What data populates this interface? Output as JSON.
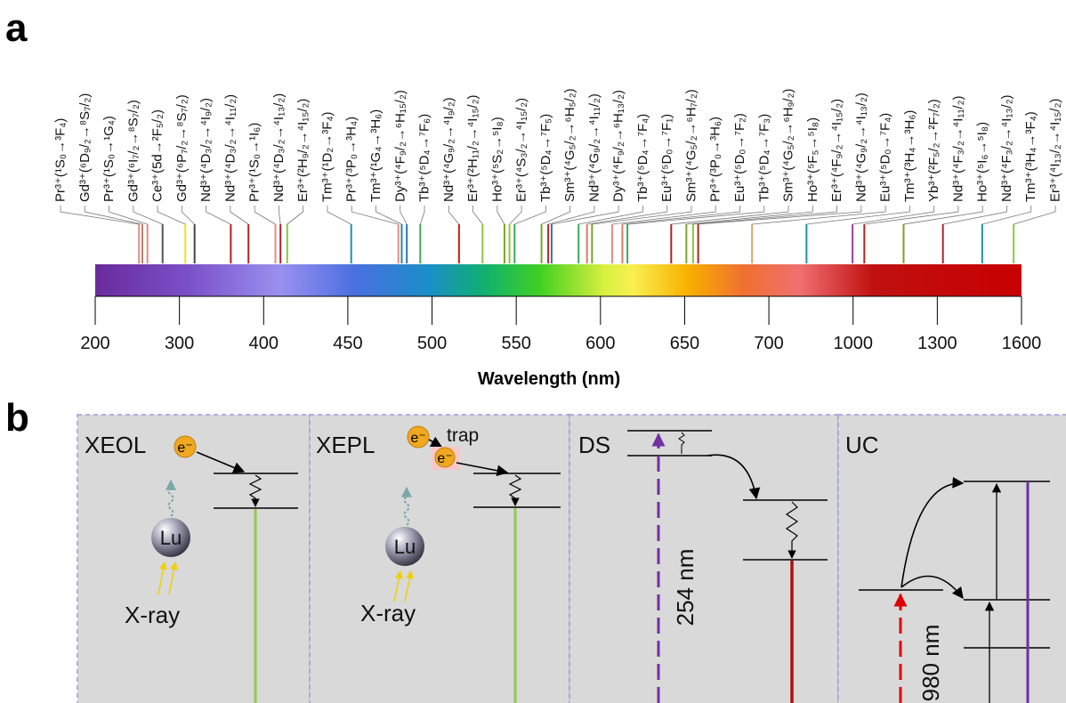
{
  "panel_a": {
    "letter": "a",
    "axis_title": "Wavelength (nm)",
    "ticks": [
      200,
      300,
      400,
      450,
      500,
      550,
      600,
      650,
      700,
      1000,
      1300,
      1600
    ],
    "transitions": [
      {
        "label": "Pr³⁺(¹S₀→³F₄)",
        "wavelength": 252,
        "color": "#e48a8a"
      },
      {
        "label": "Gd³⁺(⁶D₉/₂→⁸S₇/₂)",
        "wavelength": 256,
        "color": "#c08060"
      },
      {
        "label": "Pr³⁺(¹S₀→¹G₄)",
        "wavelength": 262,
        "color": "#e48a8a"
      },
      {
        "label": "Gd³⁺(⁶I₇/₂→⁸S₇/₂)",
        "wavelength": 280,
        "color": "#555555"
      },
      {
        "label": "Ce³⁺(5d→²F₅/₂)",
        "wavelength": 307,
        "color": "#f0e020"
      },
      {
        "label": "Gd³⁺(⁶P₇/₂→⁸S₇/₂)",
        "wavelength": 318,
        "color": "#444444"
      },
      {
        "label": "Nd³⁺(⁴D₃/₂→⁴I₉/₂)",
        "wavelength": 361,
        "color": "#b22222"
      },
      {
        "label": "Nd³⁺(⁴D₃/₂→⁴I₁₁/₂)",
        "wavelength": 382,
        "color": "#b22222"
      },
      {
        "label": "Pr³⁺(¹S₀→¹I₆)",
        "wavelength": 407,
        "color": "#e48a8a"
      },
      {
        "label": "Nd³⁺(⁴D₃/₂→⁴I₁₃/₂)",
        "wavelength": 410,
        "color": "#b22222"
      },
      {
        "label": "Er³⁺(²H₉/₂→⁴I₁₅/₂)",
        "wavelength": 414,
        "color": "#8dc63f"
      },
      {
        "label": "Tm³⁺(¹D₂→³F₄)",
        "wavelength": 452,
        "color": "#1f8fa5"
      },
      {
        "label": "Pr³⁺(³P₀→³H₄)",
        "wavelength": 480,
        "color": "#e48a8a"
      },
      {
        "label": "Tm³⁺(¹G₄→³H₆)",
        "wavelength": 482,
        "color": "#1f8fa5"
      },
      {
        "label": "Dy³⁺(⁴F₉/₂→⁶H₁₅/₂)",
        "wavelength": 485,
        "color": "#2e75b6"
      },
      {
        "label": "Tb³⁺(⁵D₄→⁷F₆)",
        "wavelength": 493,
        "color": "#3aaa5c"
      },
      {
        "label": "Nd³⁺(⁴G₉/₂→⁴I₉/₂)",
        "wavelength": 516,
        "color": "#b22222"
      },
      {
        "label": "Er³⁺(²H₁₁/₂→⁴I₁₅/₂)",
        "wavelength": 530,
        "color": "#8dc63f"
      },
      {
        "label": "Ho³⁺(⁵S₂→⁵I₈)",
        "wavelength": 543,
        "color": "#7ba428"
      },
      {
        "label": "Er³⁺(⁴S₃/₂→⁴I₁₅/₂)",
        "wavelength": 546,
        "color": "#8dc63f"
      },
      {
        "label": "Tb³⁺(⁵D₄→⁷F₅)",
        "wavelength": 549,
        "color": "#3aaa5c"
      },
      {
        "label": "Sm³⁺(⁴G₅/₂→⁶H₅/₂)",
        "wavelength": 565,
        "color": "#7ba428"
      },
      {
        "label": "Nd³⁺(⁴G₉/₂→⁴I₁₁/₂)",
        "wavelength": 569,
        "color": "#b22222"
      },
      {
        "label": "Dy³⁺(⁴F₉/₂→⁶H₁₃/₂)",
        "wavelength": 571,
        "color": "#2e75b6"
      },
      {
        "label": "Tb³⁺(⁵D₄→⁷F₄)",
        "wavelength": 587,
        "color": "#3aaa5c"
      },
      {
        "label": "Eu³⁺(⁵D₀→⁷F₁)",
        "wavelength": 592,
        "color": "#e07a5f"
      },
      {
        "label": "Sm³⁺(⁴G₅/₂→⁶H₇/₂)",
        "wavelength": 595,
        "color": "#7ba428"
      },
      {
        "label": "Pr³⁺(³P₀→³H₆)",
        "wavelength": 607,
        "color": "#e48a8a"
      },
      {
        "label": "Eu³⁺(⁵D₀→⁷F₂)",
        "wavelength": 613,
        "color": "#e07a5f"
      },
      {
        "label": "Tb³⁺(⁵D₄→⁷F₃)",
        "wavelength": 616,
        "color": "#3aaa5c"
      },
      {
        "label": "Sm³⁺(⁴G₅/₂→⁶H₉/₂)",
        "wavelength": 642,
        "color": "#b22222"
      },
      {
        "label": "Ho³⁺(⁵F₅→⁵I₈)",
        "wavelength": 651,
        "color": "#7ba428"
      },
      {
        "label": "Er³⁺(⁴F₉/₂→⁴I₁₅/₂)",
        "wavelength": 655,
        "color": "#8dc63f"
      },
      {
        "label": "Nd³⁺(⁴G₉/₂→⁴I₁₃/₂)",
        "wavelength": 658,
        "color": "#b22222"
      },
      {
        "label": "Eu³⁺(⁵D₀→⁷F₄)",
        "wavelength": 690,
        "color": "#e0a070"
      },
      {
        "label": "Tm³⁺(³H₄→³H₆)",
        "wavelength": 834,
        "color": "#1f8fa5"
      },
      {
        "label": "Yb³⁺(²F₅/₂→²F₇/₂)",
        "wavelength": 998,
        "color": "#a040a0"
      },
      {
        "label": "Nd³⁺(⁴F₃/₂→⁴I₁₁/₂)",
        "wavelength": 1040,
        "color": "#b22222"
      },
      {
        "label": "Ho³⁺(⁵I₆→⁵I₈)",
        "wavelength": 1180,
        "color": "#8a9a2a"
      },
      {
        "label": "Nd³⁺(⁴F₃/₂→⁴I₁₃/₂)",
        "wavelength": 1320,
        "color": "#b22222"
      },
      {
        "label": "Tm³⁺(³H₄→³F₄)",
        "wavelength": 1460,
        "color": "#1f8fa5"
      },
      {
        "label": "Er³⁺(⁴I₁₃/₂→⁴I₁₅/₂)",
        "wavelength": 1572,
        "color": "#8dc63f"
      }
    ]
  },
  "panel_b": {
    "letter": "b",
    "xeol": {
      "title": "XEOL",
      "electron": "e⁻",
      "atom": "Lu",
      "source": "X-ray"
    },
    "xepl": {
      "title": "XEPL",
      "electron": "e⁻",
      "trap": "trap",
      "trapped_electron": "e⁻",
      "atom": "Lu",
      "source": "X-ray"
    },
    "ds": {
      "title": "DS",
      "excitation": "254 nm"
    },
    "uc": {
      "title": "UC",
      "excitation": "980 nm"
    }
  }
}
